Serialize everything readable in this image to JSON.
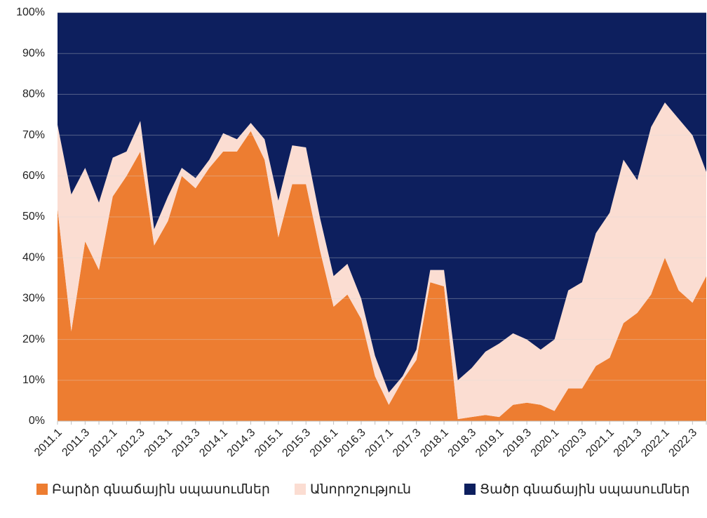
{
  "chart_data": {
    "type": "stacked_area",
    "categories": [
      "2011.1",
      null,
      "2011.3",
      null,
      "2012.1",
      null,
      "2012.3",
      null,
      "2013.1",
      null,
      "2013.3",
      null,
      "2014.1",
      null,
      "2014.3",
      null,
      "2015.1",
      null,
      "2015.3",
      null,
      "2016.1",
      null,
      "2016.3",
      null,
      "2017.1",
      null,
      "2017.3",
      null,
      "2018.1",
      null,
      "2018.3",
      null,
      "2019.1",
      null,
      "2019.3",
      null,
      "2020.1",
      null,
      "2020.3",
      null,
      "2021.1",
      null,
      "2021.3",
      null,
      "2022.1",
      null,
      "2022.3",
      null
    ],
    "series": [
      {
        "name": "Բարձր գնաճային սպասումներ",
        "color": "#ED7D31",
        "values": [
          52,
          22,
          44,
          37,
          55,
          60,
          66,
          43,
          49,
          60,
          57,
          62,
          66,
          66,
          71,
          64,
          45,
          58,
          58,
          42,
          28,
          31,
          25,
          11,
          4,
          10,
          15,
          34,
          33,
          0.5,
          1,
          1.5,
          1,
          4,
          4.5,
          4,
          2.5,
          8,
          8,
          13.5,
          15.5,
          24,
          26.5,
          31,
          40,
          32,
          29,
          35.5
        ]
      },
      {
        "name": "Անորոշություն",
        "color": "#FBDDD2",
        "values": [
          20.5,
          33.5,
          18,
          16.5,
          9.5,
          6,
          7.5,
          4,
          6,
          2,
          2.5,
          2,
          4.5,
          3,
          2,
          5,
          9,
          9.5,
          9,
          8,
          7.5,
          7.5,
          5,
          5,
          3,
          1,
          2.5,
          3,
          4,
          9.5,
          12,
          15.5,
          18,
          17.5,
          15.5,
          13.5,
          17.5,
          24,
          26,
          32.5,
          35.5,
          40,
          32.5,
          41,
          38,
          42,
          41,
          25.5
        ]
      },
      {
        "name": "Ցածր գնաճային սպասումներ",
        "color": "#0D1F5E",
        "values": [
          27.5,
          44.5,
          38,
          46.5,
          35.5,
          34,
          26.5,
          53,
          45,
          38,
          40.5,
          36,
          29.5,
          31,
          27,
          31,
          46,
          32.5,
          33,
          50,
          64.5,
          61.5,
          70,
          84,
          93,
          89,
          82.5,
          63,
          63,
          90,
          87,
          83,
          81,
          78.5,
          80,
          82.5,
          80,
          68,
          66,
          54,
          49,
          36,
          41,
          28,
          22,
          26,
          30,
          39
        ]
      }
    ],
    "ylim": [
      0,
      100
    ],
    "yticks": [
      {
        "value": 0,
        "label": "0%"
      },
      {
        "value": 10,
        "label": "10%"
      },
      {
        "value": 20,
        "label": "20%"
      },
      {
        "value": 30,
        "label": "30%"
      },
      {
        "value": 40,
        "label": "40%"
      },
      {
        "value": 50,
        "label": "50%"
      },
      {
        "value": 60,
        "label": "60%"
      },
      {
        "value": 70,
        "label": "70%"
      },
      {
        "value": 80,
        "label": "80%"
      },
      {
        "value": 90,
        "label": "90%"
      },
      {
        "value": 100,
        "label": "100%"
      }
    ],
    "grid": true,
    "legend": "bottom"
  }
}
